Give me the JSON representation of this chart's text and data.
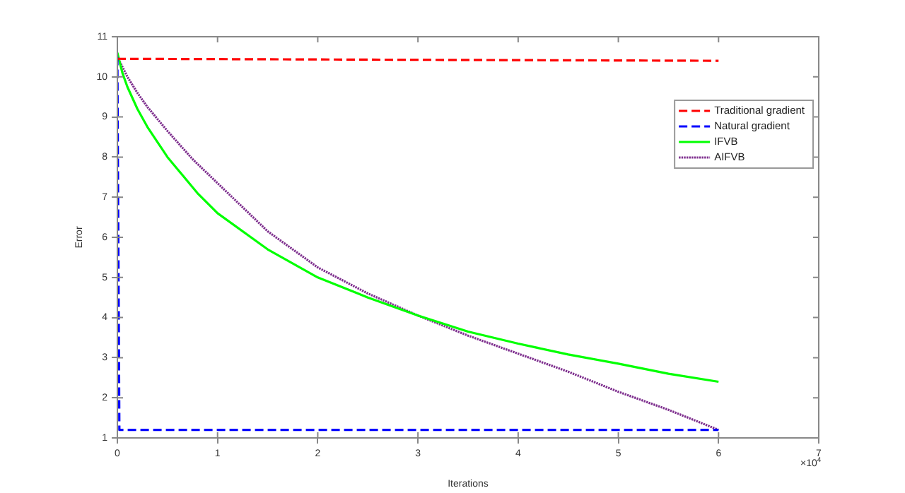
{
  "chart_data": {
    "type": "line",
    "xlabel": "Iterations",
    "ylabel": "Error",
    "xlim": [
      0,
      7
    ],
    "xticks": [
      0,
      1,
      2,
      3,
      4,
      5,
      6,
      7
    ],
    "ylim": [
      1,
      11
    ],
    "yticks": [
      1,
      2,
      3,
      4,
      5,
      6,
      7,
      8,
      9,
      10,
      11
    ],
    "grid": false,
    "legend": "top right",
    "marker": "none",
    "annotations": [
      "×10$^{4}$"
    ],
    "series": [
      {
        "name": "Traditional gradient",
        "color": "#ff0000",
        "line_style": "dashed",
        "x": [
          0,
          6
        ],
        "values": [
          10.45,
          10.4
        ]
      },
      {
        "name": "Natural gradient",
        "color": "#0000ff",
        "line_style": "dashed",
        "x": [
          0,
          0.02,
          6
        ],
        "values": [
          10.5,
          1.2,
          1.2
        ]
      },
      {
        "name": "IFVB",
        "color": "#00ff00",
        "line_style": "solid",
        "x": [
          0,
          0.05,
          0.1,
          0.2,
          0.3,
          0.5,
          0.8,
          1,
          1.5,
          2,
          2.5,
          3,
          3.5,
          4,
          4.5,
          5,
          5.5,
          6
        ],
        "values": [
          10.6,
          10.1,
          9.75,
          9.2,
          8.75,
          8.0,
          7.1,
          6.6,
          5.7,
          5.0,
          4.5,
          4.05,
          3.65,
          3.35,
          3.08,
          2.85,
          2.6,
          2.4
        ]
      },
      {
        "name": "AIFVB",
        "color": "#7e2f8e",
        "line_style": "dotted",
        "x": [
          0,
          0.05,
          0.1,
          0.2,
          0.3,
          0.5,
          0.75,
          1,
          1.5,
          2,
          2.5,
          3,
          3.5,
          4,
          4.5,
          5,
          5.5,
          6
        ],
        "values": [
          10.5,
          10.25,
          10.0,
          9.6,
          9.25,
          8.65,
          7.95,
          7.35,
          6.15,
          5.25,
          4.6,
          4.05,
          3.55,
          3.1,
          2.65,
          2.15,
          1.7,
          1.2
        ]
      }
    ]
  }
}
